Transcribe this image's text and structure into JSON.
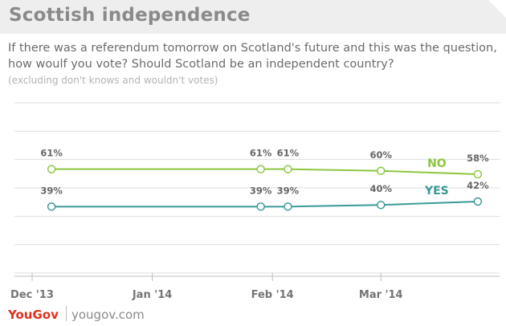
{
  "header": {
    "title": "Scottish independence",
    "subtitle": "If there was a referendum tomorrow on Scotland's future and this was the question, how woulf you vote?  Should Scotland  be an independent country?",
    "note": "(excluding don't knows and wouldn't votes)"
  },
  "footer": {
    "brand": "YouGov",
    "url": "yougov.com"
  },
  "chart_data": {
    "type": "line",
    "x_axis": {
      "type": "date",
      "range": [
        "2013-12-01",
        "2014-03-31"
      ],
      "tick_labels": [
        "Dec '13",
        "Jan '14",
        "Feb '14",
        "Mar '14"
      ],
      "ticks": [
        "2013-12-01",
        "2014-01-01",
        "2014-02-01",
        "2014-03-01"
      ]
    },
    "y_axis": {
      "range": [
        0,
        100
      ],
      "grid": true,
      "tick_labels_shown": false
    },
    "series": [
      {
        "name": "NO",
        "color": "#8cc63f",
        "points": [
          {
            "x": "2013-12-06",
            "y": 61,
            "label": "61%"
          },
          {
            "x": "2014-01-29",
            "y": 61,
            "label": "61%"
          },
          {
            "x": "2014-02-05",
            "y": 61,
            "label": "61%"
          },
          {
            "x": "2014-03-01",
            "y": 60,
            "label": "60%"
          },
          {
            "x": "2014-03-26",
            "y": 58,
            "label": "58%"
          }
        ]
      },
      {
        "name": "YES",
        "color": "#3a9a96",
        "points": [
          {
            "x": "2013-12-06",
            "y": 39,
            "label": "39%"
          },
          {
            "x": "2014-01-29",
            "y": 39,
            "label": "39%"
          },
          {
            "x": "2014-02-05",
            "y": 39,
            "label": "39%"
          },
          {
            "x": "2014-03-01",
            "y": 40,
            "label": "40%"
          },
          {
            "x": "2014-03-26",
            "y": 42,
            "label": "42%"
          }
        ]
      }
    ]
  }
}
